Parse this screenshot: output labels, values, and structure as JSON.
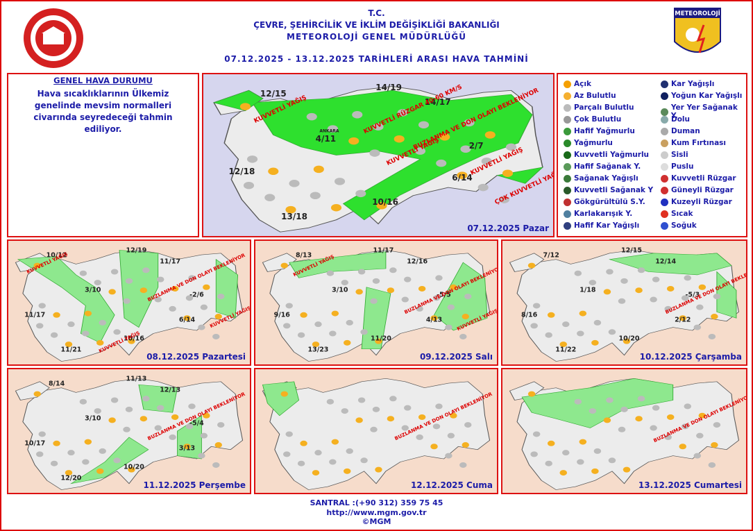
{
  "header": {
    "line1": "T.C.",
    "line2": "ÇEVRE, ŞEHİRCİLİK VE İKLİM DEĞİŞİKLİĞİ BAKANLIĞI",
    "line3": "METEOROLOJİ GENEL MÜDÜRLÜĞÜ",
    "line4": "07.12.2025 - 13.12.2025 TARİHLERİ ARASI HAVA TAHMİNİ",
    "logo_text": "METEOROLOJİ"
  },
  "general": {
    "title": "GENEL HAVA DURUMU",
    "text": "Hava sıcaklıklarının Ülkemiz genelinde mevsim normalleri civarında seyredeceği tahmin ediliyor."
  },
  "legend": {
    "items": [
      "Açık",
      "Az Bulutlu",
      "Parçalı Bulutlu",
      "Çok Bulutlu",
      "Hafif Yağmurlu",
      "Yağmurlu",
      "Kuvvetli Yağmurlu",
      "Hafif Sağanak Y.",
      "Sağanak Yağışlı",
      "Kuvvetli Sağanak Y",
      "Gökgürültülü S.Y.",
      "Karlakarışık Y.",
      "Hafif Kar Yağışlı",
      "Kar Yağışlı",
      "Yoğun Kar Yağışlı",
      "Yer Yer Sağanak Y.",
      "Dolu",
      "Duman",
      "Kum Fırtınası",
      "Sisli",
      "Puslu",
      "Kuvvetli Rüzgar",
      "Güneyli Rüzgar",
      "Kuzeyli Rüzgar",
      "Sıcak",
      "Soğuk"
    ]
  },
  "maps": [
    {
      "date": "07.12.2025 Pazar",
      "temperatures": [
        "12/15",
        "14/19",
        "14/17",
        "4/11",
        "2/7",
        "12/18",
        "6/14",
        "10/16",
        "13/18"
      ],
      "annotations": [
        "KUVVETLİ YAĞIŞ",
        "KUVVETLİ YAĞIŞ",
        "KUVVETLİ YAĞIŞ",
        "BUZLANMA VE DON OLAYI BEKLENİYOR",
        "KUVVETLİ RÜZGAR 40-60 KM/S",
        "ÇOK KUVVETLİ YAĞIŞ",
        "ANKARA"
      ]
    },
    {
      "date": "08.12.2025 Pazartesi",
      "temperatures": [
        "10/12",
        "12/19",
        "11/17",
        "3/10",
        "-2/6",
        "11/17",
        "6/14",
        "10/16",
        "11/21"
      ],
      "annotations": [
        "KUVVETLİ YAĞIŞ",
        "BUZLANMA VE DON OLAYI BEKLENİYOR",
        "KUVVETLİ YAĞIŞ",
        "KUVVETLİ YAĞIŞ"
      ]
    },
    {
      "date": "09.12.2025 Salı",
      "temperatures": [
        "8/13",
        "11/17",
        "12/16",
        "3/10",
        "-5/5",
        "9/16",
        "4/13",
        "11/20",
        "13/23"
      ],
      "annotations": [
        "KUVVETLİ YAĞIŞ",
        "BUZLANMA VE DON OLAYI BEKLENİYOR",
        "KUVVETLİ YAĞIŞ"
      ]
    },
    {
      "date": "10.12.2025 Çarşamba",
      "temperatures": [
        "7/12",
        "12/15",
        "12/14",
        "1/18",
        "-5/3",
        "8/16",
        "2/12",
        "10/20",
        "11/22"
      ],
      "annotations": [
        "BUZLANMA VE DON OLAYI BEKLENİYOR"
      ]
    },
    {
      "date": "11.12.2025 Perşembe",
      "temperatures": [
        "8/14",
        "11/13",
        "12/13",
        "3/10",
        "-5/4",
        "10/17",
        "3/13",
        "10/20",
        "12/20"
      ],
      "annotations": [
        "BUZLANMA VE DON OLAYI BEKLENİYOR"
      ]
    },
    {
      "date": "12.12.2025 Cuma",
      "temperatures": [],
      "annotations": [
        "BUZLANMA VE DON OLAYI BEKLENİYOR"
      ]
    },
    {
      "date": "13.12.2025 Cumartesi",
      "temperatures": [],
      "annotations": [
        "BUZLANMA VE DON OLAYI BEKLENİYOR"
      ]
    }
  ],
  "footer": {
    "phone": "SANTRAL :(+90 312) 359 75 45",
    "url": "http://www.mgm.gov.tr",
    "copyright": "©MGM"
  }
}
